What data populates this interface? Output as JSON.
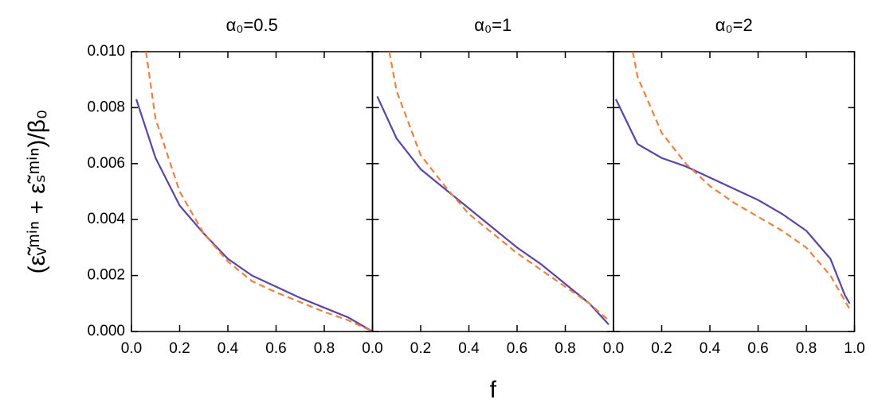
{
  "chart_data": [
    {
      "type": "line",
      "title": "α₀=0.5",
      "ylabel": "(ε̃ᵥᵐⁱⁿ + ε̃ₛᵐⁱⁿ)/β₀",
      "xlim": [
        0,
        1
      ],
      "ylim": [
        0,
        0.01
      ],
      "xticks": [
        {
          "value": 0,
          "label": "0.0"
        },
        0.2,
        0.4,
        0.6,
        0.8
      ],
      "yticks": [
        {
          "value": 0,
          "label": "0.000"
        },
        {
          "value": 0.002,
          "label": "0.002"
        },
        {
          "value": 0.004,
          "label": "0.004"
        },
        {
          "value": 0.006,
          "label": "0.006"
        },
        {
          "value": 0.008,
          "label": "0.008"
        },
        {
          "value": 0.01,
          "label": "0.010"
        }
      ],
      "series": [
        {
          "color": "#5b44a8",
          "style": "solid",
          "x": [
            0.02,
            0.1,
            0.2,
            0.3,
            0.4,
            0.5,
            0.6,
            0.7,
            0.8,
            0.9,
            1.0
          ],
          "values": [
            0.0083,
            0.0062,
            0.0045,
            0.0035,
            0.0026,
            0.002,
            0.0016,
            0.0012,
            0.00085,
            0.0005,
            0
          ]
        },
        {
          "color": "#f0803c",
          "style": "dashed",
          "x": [
            0.06,
            0.1,
            0.2,
            0.3,
            0.4,
            0.5,
            0.6,
            0.7,
            0.8,
            0.9,
            1.0
          ],
          "values": [
            0.01,
            0.0076,
            0.005,
            0.0035,
            0.0025,
            0.0018,
            0.0014,
            0.00105,
            0.0007,
            0.0004,
            0
          ]
        }
      ]
    },
    {
      "type": "line",
      "title": "α₀=1",
      "xlabel": "f",
      "xlim": [
        0,
        1
      ],
      "ylim": [
        0,
        0.01
      ],
      "xticks": [
        {
          "value": 0,
          "label": "0.0"
        },
        0.2,
        0.4,
        0.6,
        0.8
      ],
      "series": [
        {
          "color": "#5b44a8",
          "style": "solid",
          "x": [
            0.02,
            0.1,
            0.2,
            0.3,
            0.4,
            0.5,
            0.6,
            0.7,
            0.8,
            0.9,
            0.98
          ],
          "values": [
            0.0084,
            0.0069,
            0.0058,
            0.0051,
            0.0044,
            0.0037,
            0.003,
            0.0024,
            0.0017,
            0.001,
            0.00025
          ]
        },
        {
          "color": "#f0803c",
          "style": "dashed",
          "x": [
            0.07,
            0.1,
            0.2,
            0.3,
            0.4,
            0.5,
            0.6,
            0.7,
            0.8,
            0.9,
            0.98
          ],
          "values": [
            0.01,
            0.0086,
            0.0063,
            0.0052,
            0.0042,
            0.0035,
            0.0028,
            0.0022,
            0.0016,
            0.001,
            0.0004
          ]
        }
      ]
    },
    {
      "type": "line",
      "title": "α₀=2",
      "xlim": [
        0,
        1
      ],
      "ylim": [
        0,
        0.01
      ],
      "xticks": [
        {
          "value": 0,
          "label": "0.0"
        },
        0.2,
        0.4,
        0.6,
        0.8,
        {
          "value": 1,
          "label": "1.0"
        }
      ],
      "series": [
        {
          "color": "#5b44a8",
          "style": "solid",
          "x": [
            0.01,
            0.1,
            0.2,
            0.3,
            0.4,
            0.5,
            0.6,
            0.7,
            0.8,
            0.9,
            0.96,
            0.98
          ],
          "values": [
            0.0083,
            0.0067,
            0.0062,
            0.0059,
            0.0055,
            0.0051,
            0.0047,
            0.0042,
            0.0036,
            0.0026,
            0.0013,
            0.001
          ]
        },
        {
          "color": "#f0803c",
          "style": "dashed",
          "x": [
            0.08,
            0.1,
            0.2,
            0.3,
            0.4,
            0.5,
            0.6,
            0.7,
            0.8,
            0.9,
            0.98
          ],
          "values": [
            0.01,
            0.0091,
            0.0071,
            0.006,
            0.0052,
            0.0046,
            0.0041,
            0.0036,
            0.003,
            0.002,
            0.0008
          ]
        }
      ]
    }
  ]
}
